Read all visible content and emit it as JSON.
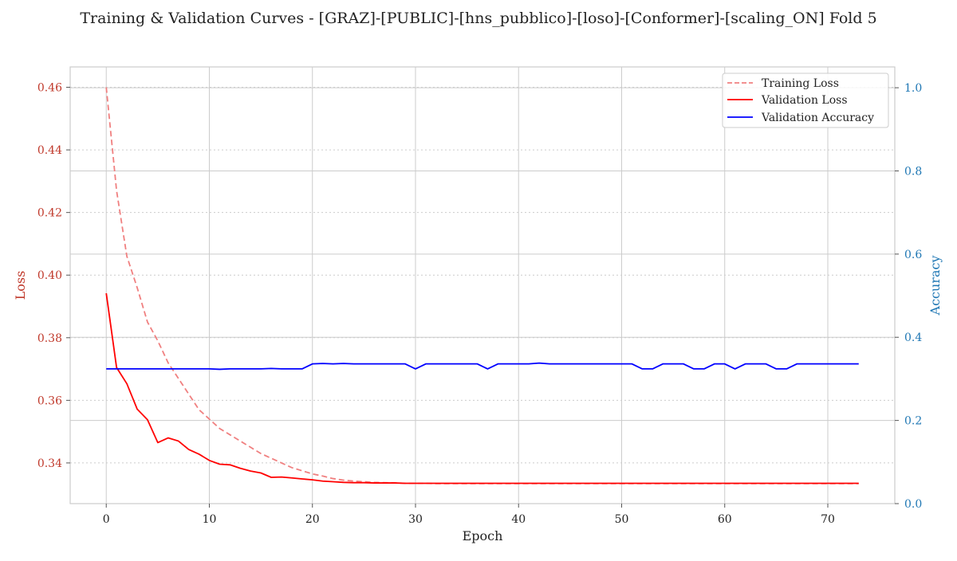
{
  "chart_data": {
    "type": "line",
    "title": "Training & Validation Curves - [GRAZ]-[PUBLIC]-[hns_pubblico]-[loso]-[Conformer]-[scaling_ON] Fold 5",
    "xlabel": "Epoch",
    "ylabel_left": "Loss",
    "ylabel_right": "Accuracy",
    "xlim": [
      -3.5,
      76.5
    ],
    "ylim_left": [
      0.327,
      0.4665
    ],
    "ylim_right": [
      0.0,
      1.05
    ],
    "x_ticks": [
      0,
      10,
      20,
      30,
      40,
      50,
      60,
      70
    ],
    "y_ticks_left": [
      0.34,
      0.36,
      0.38,
      0.4,
      0.42,
      0.44,
      0.46
    ],
    "y_ticks_right": [
      0.0,
      0.2,
      0.4,
      0.6,
      0.8,
      1.0
    ],
    "grid": true,
    "legend_position": "upper-right",
    "colors": {
      "training_loss": "#f08080",
      "validation_loss": "#ff0000",
      "validation_accuracy": "#0000ff",
      "left_axis": "#c0392b",
      "right_axis": "#1f77b4",
      "grid": "#cccccc"
    },
    "series": [
      {
        "name": "Training Loss",
        "axis": "left",
        "style": "dashed",
        "values": [
          0.46,
          0.427,
          0.406,
          0.396,
          0.385,
          0.379,
          0.372,
          0.367,
          0.362,
          0.357,
          0.354,
          0.351,
          0.349,
          0.347,
          0.345,
          0.343,
          0.3415,
          0.34,
          0.3385,
          0.3375,
          0.3365,
          0.3358,
          0.335,
          0.3345,
          0.3342,
          0.334,
          0.3338,
          0.3337,
          0.3336,
          0.3335,
          0.3335,
          0.3335,
          0.3334,
          0.3334,
          0.3334,
          0.3334,
          0.3334,
          0.3334,
          0.3334,
          0.3334,
          0.3334,
          0.3334,
          0.3334,
          0.3334,
          0.3334,
          0.3334,
          0.3334,
          0.3334,
          0.3334,
          0.3334,
          0.3334,
          0.3334,
          0.3334,
          0.3334,
          0.3334,
          0.3334,
          0.3334,
          0.3334,
          0.3334,
          0.3334,
          0.3334,
          0.3334,
          0.3334,
          0.3334,
          0.3334,
          0.3334,
          0.3334,
          0.3334,
          0.3334,
          0.3334,
          0.3334,
          0.3334,
          0.3334,
          0.3334
        ]
      },
      {
        "name": "Validation Loss",
        "axis": "left",
        "style": "solid",
        "values": [
          0.3942,
          0.3705,
          0.3653,
          0.3572,
          0.3538,
          0.3465,
          0.348,
          0.347,
          0.3443,
          0.3428,
          0.3408,
          0.3396,
          0.3394,
          0.3383,
          0.3374,
          0.3368,
          0.3354,
          0.3355,
          0.3352,
          0.3349,
          0.3346,
          0.3342,
          0.334,
          0.3338,
          0.3337,
          0.3337,
          0.3336,
          0.3336,
          0.3336,
          0.3335,
          0.3335,
          0.3335,
          0.3335,
          0.3335,
          0.3335,
          0.3335,
          0.3335,
          0.3335,
          0.3335,
          0.3335,
          0.3335,
          0.3335,
          0.3335,
          0.3335,
          0.3335,
          0.3335,
          0.3335,
          0.3335,
          0.3335,
          0.3335,
          0.3335,
          0.3335,
          0.3335,
          0.3335,
          0.3335,
          0.3335,
          0.3335,
          0.3335,
          0.3335,
          0.3335,
          0.3335,
          0.3335,
          0.3335,
          0.3335,
          0.3335,
          0.3335,
          0.3335,
          0.3335,
          0.3335,
          0.3335,
          0.3335,
          0.3335,
          0.3335,
          0.3335
        ]
      },
      {
        "name": "Validation Accuracy",
        "axis": "right",
        "style": "solid",
        "values": [
          0.324,
          0.324,
          0.324,
          0.324,
          0.324,
          0.324,
          0.324,
          0.324,
          0.324,
          0.324,
          0.324,
          0.323,
          0.324,
          0.324,
          0.324,
          0.324,
          0.325,
          0.324,
          0.324,
          0.324,
          0.336,
          0.337,
          0.336,
          0.337,
          0.336,
          0.336,
          0.336,
          0.336,
          0.336,
          0.336,
          0.324,
          0.336,
          0.336,
          0.336,
          0.336,
          0.336,
          0.336,
          0.324,
          0.336,
          0.336,
          0.336,
          0.336,
          0.338,
          0.336,
          0.336,
          0.336,
          0.336,
          0.336,
          0.336,
          0.336,
          0.336,
          0.336,
          0.324,
          0.324,
          0.336,
          0.336,
          0.336,
          0.324,
          0.324,
          0.336,
          0.336,
          0.324,
          0.336,
          0.336,
          0.336,
          0.324,
          0.324,
          0.336,
          0.336,
          0.336,
          0.336,
          0.336,
          0.336,
          0.336
        ]
      }
    ]
  }
}
